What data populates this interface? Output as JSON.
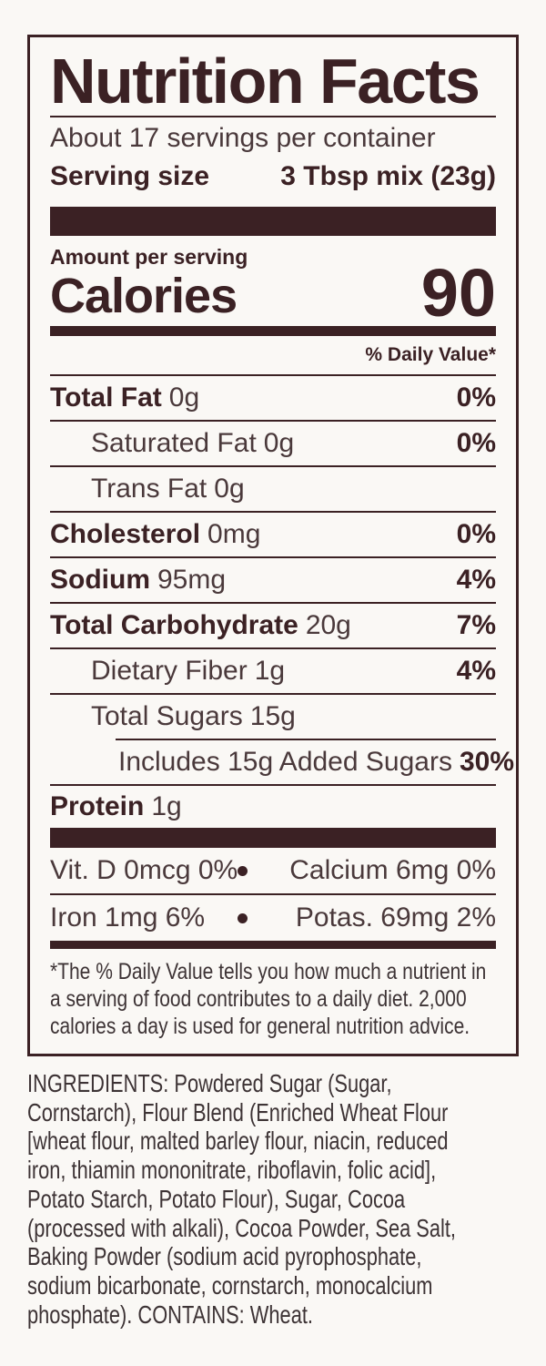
{
  "colors": {
    "ink": "#3b2124",
    "ink_soft": "#4a393b",
    "body_ink": "#3d3335",
    "paper": "#faf8f5"
  },
  "label": {
    "title": "Nutrition Facts",
    "servings_per_container": "About 17 servings per container",
    "serving_size": {
      "label": "Serving size",
      "value": "3 Tbsp mix (23g)"
    },
    "amount_per_serving": "Amount per serving",
    "calories": {
      "label": "Calories",
      "value": "90"
    },
    "daily_value_header": "% Daily Value*",
    "nutrients": [
      {
        "name": "Total Fat",
        "amount": "0g",
        "dv": "0%"
      },
      {
        "name": "Saturated Fat",
        "amount": "0g",
        "dv": "0%"
      },
      {
        "name": "Trans Fat",
        "amount": "0g",
        "dv": ""
      },
      {
        "name": "Cholesterol",
        "amount": "0mg",
        "dv": "0%"
      },
      {
        "name": "Sodium",
        "amount": "95mg",
        "dv": "4%"
      },
      {
        "name": "Total Carbohydrate",
        "amount": "20g",
        "dv": "7%"
      },
      {
        "name": "Dietary Fiber",
        "amount": "1g",
        "dv": "4%"
      },
      {
        "name": "Total Sugars",
        "amount": "15g",
        "dv": ""
      },
      {
        "name": "Includes 15g Added Sugars",
        "amount": "",
        "dv": "30%"
      },
      {
        "name": "Protein",
        "amount": "1g",
        "dv": ""
      }
    ],
    "micronutrients": [
      {
        "left": "Vit. D 0mcg 0%",
        "right": "Calcium 6mg 0%"
      },
      {
        "left": "Iron 1mg 6%",
        "right": "Potas. 69mg 2%"
      }
    ],
    "footnote_lines": [
      "*The % Daily Value tells you how much a nutrient in",
      "a serving of food contributes to a daily diet. 2,000",
      "calories a day is used for general nutrition advice."
    ]
  },
  "ingredients": {
    "lines": [
      "INGREDIENTS: Powdered Sugar (Sugar,",
      "Cornstarch), Flour Blend (Enriched Wheat Flour",
      "[wheat flour, malted barley flour, niacin, reduced",
      "iron, thiamin mononitrate, riboflavin, folic acid],",
      "Potato Starch, Potato Flour), Sugar, Cocoa",
      "(processed with alkali), Cocoa Powder, Sea Salt,",
      "Baking Powder (sodium acid pyrophosphate,",
      "sodium bicarbonate, cornstarch, monocalcium",
      "phosphate). CONTAINS: Wheat."
    ]
  }
}
